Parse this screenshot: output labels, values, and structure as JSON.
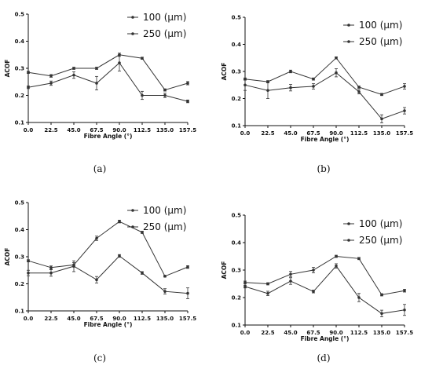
{
  "chart_data": [
    {
      "type": "line",
      "panel_label": "(a)",
      "x": [
        0.0,
        22.5,
        45.0,
        67.5,
        90.0,
        112.5,
        135.0,
        157.5
      ],
      "x_tick_labels": [
        "0.0",
        "22.5",
        "45.0",
        "67.5",
        "90.0",
        "112.5",
        "135.0",
        "157.5"
      ],
      "y_tick_labels": [
        "0.1",
        "0.2",
        "0.3",
        "0.4",
        "0.5"
      ],
      "xlabel": "Fibre Angle (°)",
      "ylabel": "ACOF",
      "ylim": [
        0.1,
        0.5
      ],
      "legend_position": "top-right",
      "series": [
        {
          "name": "100 (µm)",
          "values": [
            0.23,
            0.245,
            0.275,
            0.245,
            0.32,
            0.2,
            0.2,
            0.178
          ],
          "errors": [
            0.005,
            0.008,
            0.012,
            0.025,
            0.03,
            0.015,
            0.008,
            0.005
          ]
        },
        {
          "name": "250 (µm)",
          "values": [
            0.285,
            0.272,
            0.3,
            0.3,
            0.35,
            0.337,
            0.22,
            0.245
          ],
          "errors": [
            0.004,
            0.005,
            0.004,
            0.004,
            0.006,
            0.004,
            0.004,
            0.006
          ]
        }
      ]
    },
    {
      "type": "line",
      "panel_label": "(b)",
      "x": [
        0.0,
        22.5,
        45.0,
        67.5,
        90.0,
        112.5,
        135.0,
        157.5
      ],
      "x_tick_labels": [
        "0.0",
        "22.5",
        "45.0",
        "67.5",
        "90.0",
        "112.5",
        "135.0",
        "157.5"
      ],
      "y_tick_labels": [
        "0.1",
        "0.2",
        "0.3",
        "0.4",
        "0.5"
      ],
      "xlabel": "Fibre Angle (°)",
      "ylabel": "ACOF",
      "ylim": [
        0.1,
        0.5
      ],
      "legend_position": "top-right",
      "series": [
        {
          "name": "100 (µm)",
          "values": [
            0.25,
            0.23,
            0.24,
            0.245,
            0.295,
            0.225,
            0.125,
            0.155
          ],
          "errors": [
            0.02,
            0.03,
            0.012,
            0.01,
            0.015,
            0.008,
            0.015,
            0.012
          ]
        },
        {
          "name": "250 (µm)",
          "values": [
            0.272,
            0.262,
            0.3,
            0.272,
            0.35,
            0.242,
            0.215,
            0.245
          ],
          "errors": [
            0.004,
            0.004,
            0.005,
            0.004,
            0.004,
            0.004,
            0.004,
            0.01
          ]
        }
      ]
    },
    {
      "type": "line",
      "panel_label": "(c)",
      "x": [
        0.0,
        22.5,
        45.0,
        67.5,
        90.0,
        112.5,
        135.0,
        157.5
      ],
      "x_tick_labels": [
        "0.0",
        "22.5",
        "45.0",
        "67.5",
        "90.0",
        "112.5",
        "135.0",
        "157.5"
      ],
      "y_tick_labels": [
        "0.1",
        "0.2",
        "0.3",
        "0.4",
        "0.5"
      ],
      "xlabel": "Fibre Angle (°)",
      "ylabel": "ACOF",
      "ylim": [
        0.1,
        0.5
      ],
      "legend_position": "top-right",
      "series": [
        {
          "name": "100 (µm)",
          "values": [
            0.24,
            0.24,
            0.265,
            0.215,
            0.303,
            0.24,
            0.172,
            0.165
          ],
          "errors": [
            0.01,
            0.012,
            0.02,
            0.012,
            0.005,
            0.005,
            0.01,
            0.02
          ]
        },
        {
          "name": "250 (µm)",
          "values": [
            0.285,
            0.26,
            0.27,
            0.368,
            0.43,
            0.39,
            0.228,
            0.262
          ],
          "errors": [
            0.004,
            0.006,
            0.008,
            0.008,
            0.005,
            0.004,
            0.003,
            0.005
          ]
        }
      ]
    },
    {
      "type": "line",
      "panel_label": "(d)",
      "x": [
        0.0,
        22.5,
        45.0,
        67.5,
        90.0,
        112.5,
        135.0,
        157.5
      ],
      "x_tick_labels": [
        "0.0",
        "22.5",
        "45.0",
        "67.5",
        "90.0",
        "112.5",
        "135.0",
        "157.5"
      ],
      "y_tick_labels": [
        "0.1",
        "0.2",
        "0.3",
        "0.4",
        "0.5"
      ],
      "xlabel": "Fibre Angle (°)",
      "ylabel": "ACOF",
      "ylim": [
        0.1,
        0.5
      ],
      "legend_position": "top-right",
      "series": [
        {
          "name": "100 (µm)",
          "values": [
            0.24,
            0.215,
            0.26,
            0.222,
            0.315,
            0.2,
            0.142,
            0.155
          ],
          "errors": [
            0.005,
            0.008,
            0.012,
            0.005,
            0.008,
            0.015,
            0.012,
            0.02
          ]
        },
        {
          "name": "250 (µm)",
          "values": [
            0.255,
            0.25,
            0.285,
            0.3,
            0.35,
            0.342,
            0.21,
            0.225
          ],
          "errors": [
            0.005,
            0.004,
            0.01,
            0.01,
            0.004,
            0.004,
            0.004,
            0.005
          ]
        }
      ]
    }
  ],
  "colors": {
    "series_line": "#333333",
    "axis": "#111111",
    "text": "#111111"
  }
}
